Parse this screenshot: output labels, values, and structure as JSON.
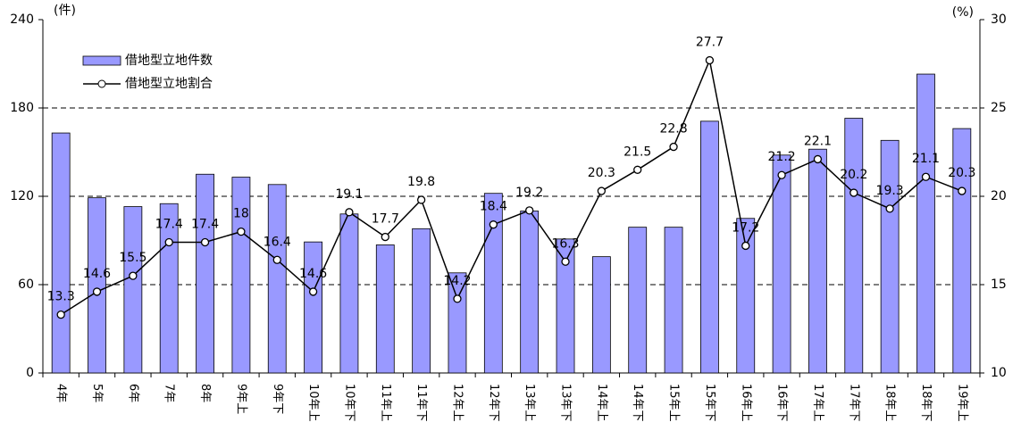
{
  "chart_data": {
    "type": "bar_line",
    "y_unit": "(件)",
    "y2_unit": "(%)",
    "categories": [
      "4年",
      "5年",
      "6年",
      "7年",
      "8年",
      "9年上",
      "9年下",
      "10年上",
      "10年下",
      "11年上",
      "11年下",
      "12年上",
      "12年下",
      "13年上",
      "13年下",
      "14年上",
      "14年下",
      "15年上",
      "15年下",
      "16年上",
      "16年下",
      "17年上",
      "17年下",
      "18年上",
      "18年下",
      "19年上"
    ],
    "series": [
      {
        "name": "借地型立地件数",
        "type": "bar",
        "color": "#9999ff",
        "values": [
          163,
          119,
          113,
          115,
          135,
          133,
          128,
          89,
          108,
          87,
          98,
          68,
          122,
          110,
          91,
          79,
          99,
          99,
          171,
          105,
          148,
          152,
          173,
          158,
          203,
          166
        ]
      },
      {
        "name": "借地型立地割合",
        "type": "line",
        "axis": "y2",
        "color": "#000000",
        "values": [
          13.3,
          14.6,
          15.5,
          17.4,
          17.4,
          18.0,
          16.4,
          14.6,
          19.1,
          17.7,
          19.8,
          14.2,
          18.4,
          19.2,
          16.3,
          20.3,
          21.5,
          22.8,
          27.7,
          17.2,
          21.2,
          22.1,
          20.2,
          19.3,
          21.1,
          20.3
        ]
      }
    ],
    "ylim": [
      0,
      240
    ],
    "yticks": [
      0,
      60,
      120,
      180,
      240
    ],
    "y2lim": [
      10,
      30
    ],
    "y2ticks": [
      10,
      15,
      20,
      25,
      30
    ],
    "grid": true,
    "legend": "upper left"
  }
}
